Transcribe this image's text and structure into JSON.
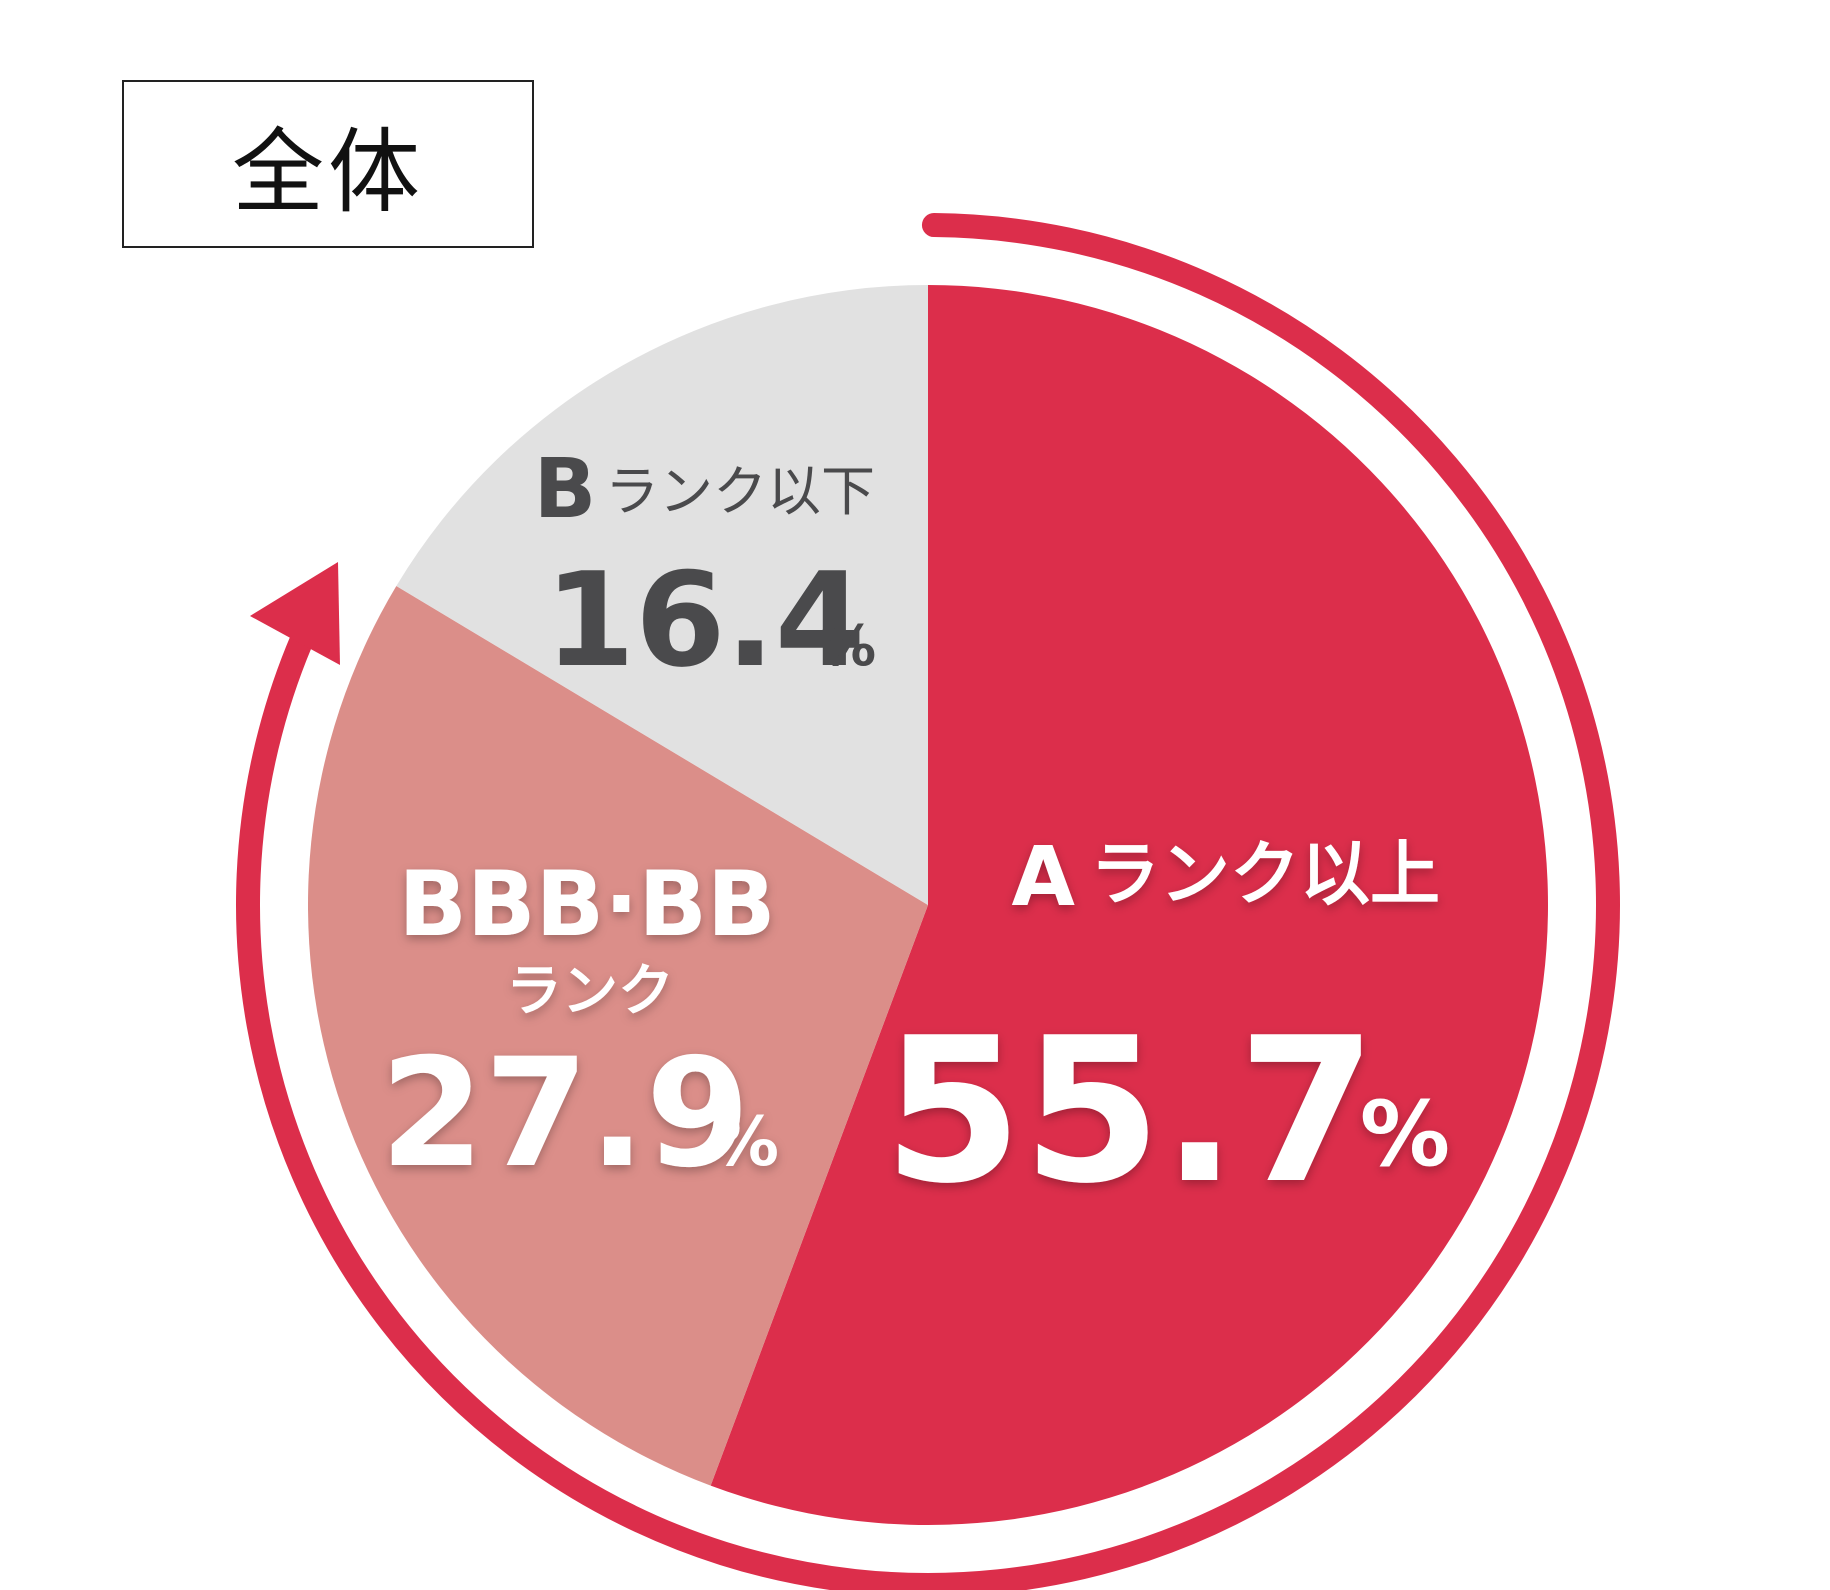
{
  "title": "全体",
  "chart_data": {
    "type": "pie",
    "categories": [
      "Aランク以上",
      "BBB・BBランク",
      "Bランク以下"
    ],
    "values": [
      55.7,
      27.9,
      16.4
    ],
    "unit": "%",
    "slices": [
      {
        "label_rank": "A",
        "label_suffix": "ランク以上",
        "value": "55.7",
        "unit": "%",
        "color": "#dc2e4b"
      },
      {
        "label_rank": "BBB·BB",
        "label_suffix": "ランク",
        "value": "27.9",
        "unit": "%",
        "color": "#db8e89"
      },
      {
        "label_rank": "B",
        "label_suffix": "ランク以下",
        "value": "16.4",
        "unit": "%",
        "color": "#e1e1e1"
      }
    ],
    "arrow_color": "#dc2e4b"
  }
}
